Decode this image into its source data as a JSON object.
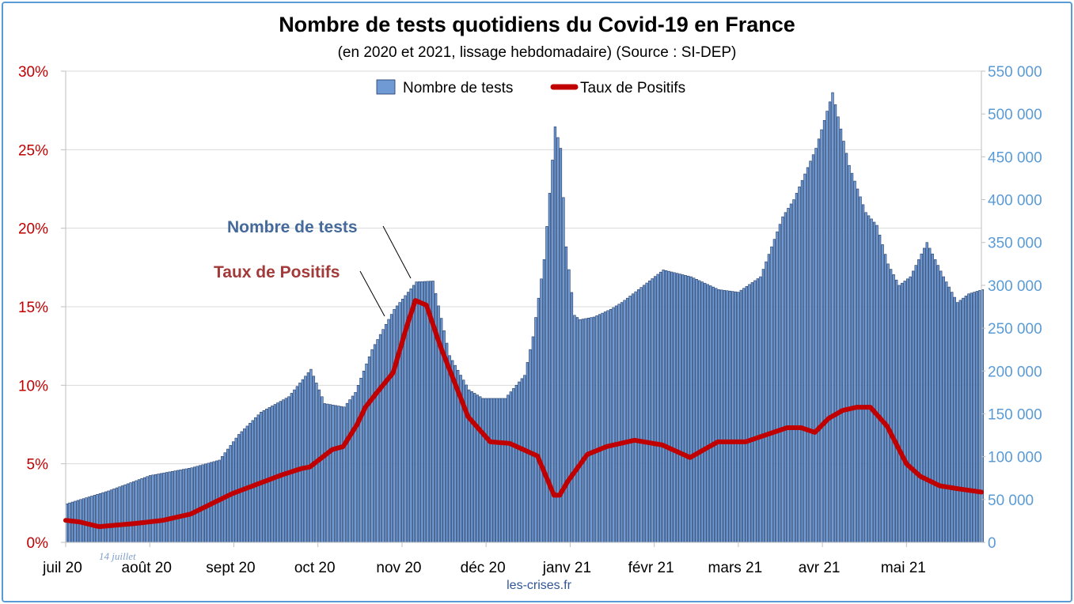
{
  "chart_data": {
    "type": "bar+line",
    "title": "Nombre de tests quotidiens du Covid-19 en France",
    "subtitle": "(en 2020 et 2021, lissage hebdomadaire) (Source : SI-DEP)",
    "source_text": "les-crises.fr",
    "legend": [
      {
        "name": "Nombre de tests",
        "color": "#6f9ad4",
        "kind": "bar"
      },
      {
        "name": "Taux de Positifs",
        "color": "#c00000",
        "kind": "line"
      }
    ],
    "legend_position": "top-center",
    "x_ticks": [
      "juil 20",
      "août 20",
      "sept 20",
      "oct 20",
      "nov 20",
      "déc 20",
      "janv 21",
      "févr 21",
      "mars 21",
      "avr 21",
      "mai 21"
    ],
    "y_left": {
      "ticks": [
        "0%",
        "5%",
        "10%",
        "15%",
        "20%",
        "25%",
        "30%"
      ],
      "range": [
        0,
        30
      ],
      "color": "#c00000"
    },
    "y_right": {
      "ticks": [
        "0",
        "50 000",
        "100 000",
        "150 000",
        "200 000",
        "250 000",
        "300 000",
        "350 000",
        "400 000",
        "450 000",
        "500 000",
        "550 000"
      ],
      "range": [
        0,
        550000
      ],
      "color": "#5b9bd5"
    },
    "grid": true,
    "x_range_days": [
      0,
      330
    ],
    "series": [
      {
        "name": "Nombre de tests",
        "type": "bar",
        "x_day": [
          0,
          15,
          30,
          45,
          55,
          62,
          70,
          80,
          88,
          93,
          100,
          104,
          110,
          118,
          126,
          132,
          138,
          145,
          150,
          158,
          165,
          168,
          172,
          176,
          178,
          180,
          183,
          185,
          190,
          196,
          200,
          206,
          215,
          225,
          235,
          242,
          250,
          258,
          262,
          270,
          276,
          282,
          288,
          292,
          296,
          300,
          304,
          307,
          310,
          316,
          321,
          325,
          330
        ],
        "values": [
          45000,
          60000,
          78000,
          87000,
          96000,
          126000,
          152000,
          170000,
          202000,
          162000,
          158000,
          175000,
          225000,
          272000,
          304000,
          305000,
          218000,
          178000,
          168000,
          168000,
          195000,
          240000,
          330000,
          485000,
          460000,
          345000,
          265000,
          260000,
          263000,
          272000,
          280000,
          295000,
          318000,
          310000,
          295000,
          292000,
          310000,
          380000,
          400000,
          460000,
          525000,
          440000,
          385000,
          370000,
          325000,
          300000,
          310000,
          330000,
          350000,
          310000,
          280000,
          290000,
          295000
        ]
      },
      {
        "name": "Taux de Positifs",
        "type": "line",
        "x_day": [
          0,
          5,
          12,
          25,
          35,
          45,
          60,
          72,
          78,
          85,
          88,
          96,
          100,
          105,
          108,
          112,
          118,
          123,
          126,
          130,
          135,
          145,
          153,
          160,
          170,
          176,
          178,
          181,
          188,
          195,
          205,
          215,
          225,
          235,
          245,
          255,
          260,
          265,
          270,
          275,
          280,
          285,
          290,
          296,
          303,
          308,
          315,
          322,
          330
        ],
        "values": [
          1.4,
          1.3,
          1.0,
          1.2,
          1.4,
          1.8,
          3.1,
          3.9,
          4.3,
          4.7,
          4.8,
          5.9,
          6.1,
          7.5,
          8.6,
          9.5,
          10.8,
          13.8,
          15.4,
          15.1,
          12.5,
          8.0,
          6.4,
          6.3,
          5.5,
          3.0,
          3.0,
          3.9,
          5.6,
          6.1,
          6.5,
          6.2,
          5.4,
          6.4,
          6.4,
          7.0,
          7.3,
          7.3,
          7.0,
          7.9,
          8.4,
          8.6,
          8.6,
          7.4,
          5.0,
          4.2,
          3.6,
          3.4,
          3.2
        ]
      }
    ],
    "annotations": [
      {
        "text": "Nombre de tests",
        "color": "#44699a"
      },
      {
        "text": "Taux de Positifs",
        "color": "#a33a3a"
      },
      {
        "text": "14 juillet",
        "color": "#7f9fc8"
      }
    ]
  }
}
